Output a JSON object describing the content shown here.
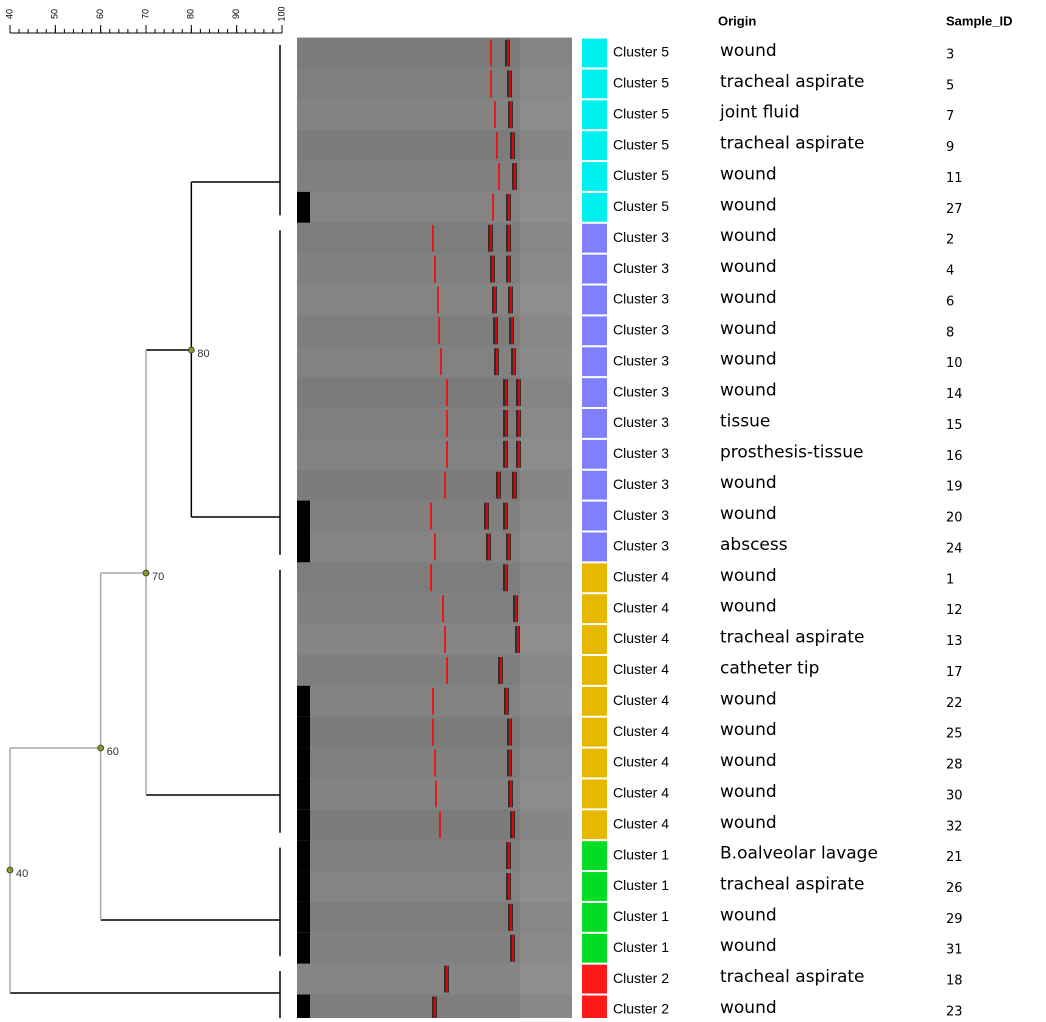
{
  "header": {
    "origin": "Origin",
    "sample_id": "Sample_ID"
  },
  "scale": {
    "lim": [
      40,
      100
    ],
    "ticks": [
      40,
      50,
      60,
      70,
      80,
      90,
      100
    ]
  },
  "nodes": [
    {
      "value": 80
    },
    {
      "value": 70
    },
    {
      "value": 60
    },
    {
      "value": 40
    }
  ],
  "rows": [
    {
      "cluster": "Cluster 5",
      "color": "#00f0f0",
      "origin": "wound",
      "sample_id": "3"
    },
    {
      "cluster": "Cluster 5",
      "color": "#00f0f0",
      "origin": "tracheal aspirate",
      "sample_id": "5"
    },
    {
      "cluster": "Cluster 5",
      "color": "#00f0f0",
      "origin": "joint fluid",
      "sample_id": "7"
    },
    {
      "cluster": "Cluster 5",
      "color": "#00f0f0",
      "origin": "tracheal aspirate",
      "sample_id": "9"
    },
    {
      "cluster": "Cluster 5",
      "color": "#00f0f0",
      "origin": "wound",
      "sample_id": "11"
    },
    {
      "cluster": "Cluster 5",
      "color": "#00f0f0",
      "origin": "wound",
      "sample_id": "27"
    },
    {
      "cluster": "Cluster 3",
      "color": "#8080ff",
      "origin": "wound",
      "sample_id": "2"
    },
    {
      "cluster": "Cluster 3",
      "color": "#8080ff",
      "origin": "wound",
      "sample_id": "4"
    },
    {
      "cluster": "Cluster 3",
      "color": "#8080ff",
      "origin": "wound",
      "sample_id": "6"
    },
    {
      "cluster": "Cluster 3",
      "color": "#8080ff",
      "origin": "wound",
      "sample_id": "8"
    },
    {
      "cluster": "Cluster 3",
      "color": "#8080ff",
      "origin": "wound",
      "sample_id": "10"
    },
    {
      "cluster": "Cluster 3",
      "color": "#8080ff",
      "origin": "wound",
      "sample_id": "14"
    },
    {
      "cluster": "Cluster 3",
      "color": "#8080ff",
      "origin": "tissue",
      "sample_id": "15"
    },
    {
      "cluster": "Cluster 3",
      "color": "#8080ff",
      "origin": "prosthesis-tissue",
      "sample_id": "16"
    },
    {
      "cluster": "Cluster 3",
      "color": "#8080ff",
      "origin": "wound",
      "sample_id": "19"
    },
    {
      "cluster": "Cluster 3",
      "color": "#8080ff",
      "origin": "wound",
      "sample_id": "20"
    },
    {
      "cluster": "Cluster 3",
      "color": "#8080ff",
      "origin": "abscess",
      "sample_id": "24"
    },
    {
      "cluster": "Cluster 4",
      "color": "#e6b800",
      "origin": "wound",
      "sample_id": "1"
    },
    {
      "cluster": "Cluster 4",
      "color": "#e6b800",
      "origin": "wound",
      "sample_id": "12"
    },
    {
      "cluster": "Cluster 4",
      "color": "#e6b800",
      "origin": "tracheal aspirate",
      "sample_id": "13"
    },
    {
      "cluster": "Cluster 4",
      "color": "#e6b800",
      "origin": "catheter tip",
      "sample_id": "17"
    },
    {
      "cluster": "Cluster 4",
      "color": "#e6b800",
      "origin": "wound",
      "sample_id": "22"
    },
    {
      "cluster": "Cluster 4",
      "color": "#e6b800",
      "origin": "wound",
      "sample_id": "25"
    },
    {
      "cluster": "Cluster 4",
      "color": "#e6b800",
      "origin": "wound",
      "sample_id": "28"
    },
    {
      "cluster": "Cluster 4",
      "color": "#e6b800",
      "origin": "wound",
      "sample_id": "30"
    },
    {
      "cluster": "Cluster 4",
      "color": "#e6b800",
      "origin": "wound",
      "sample_id": "32"
    },
    {
      "cluster": "Cluster 1",
      "color": "#00dd22",
      "origin": "B.oalveolar lavage",
      "sample_id": "21"
    },
    {
      "cluster": "Cluster 1",
      "color": "#00dd22",
      "origin": "tracheal aspirate",
      "sample_id": "26"
    },
    {
      "cluster": "Cluster 1",
      "color": "#00dd22",
      "origin": "wound",
      "sample_id": "29"
    },
    {
      "cluster": "Cluster 1",
      "color": "#00dd22",
      "origin": "wound",
      "sample_id": "31"
    },
    {
      "cluster": "Cluster 2",
      "color": "#ff1a1a",
      "origin": "tracheal aspirate",
      "sample_id": "18"
    },
    {
      "cluster": "Cluster 2",
      "color": "#ff1a1a",
      "origin": "wound",
      "sample_id": "23"
    }
  ]
}
